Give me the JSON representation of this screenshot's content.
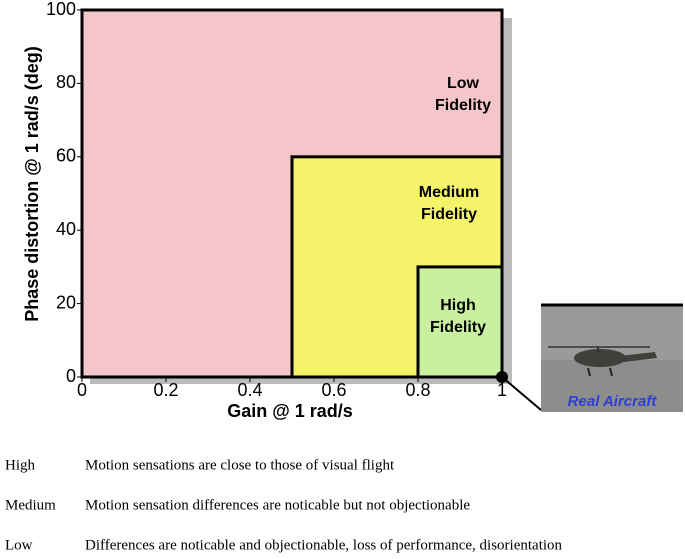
{
  "chart_data": {
    "type": "region",
    "xlabel": "Gain @ 1 rad/s",
    "ylabel": "Phase distortion @ 1 rad/s (deg)",
    "xlim": [
      0,
      1
    ],
    "ylim": [
      0,
      100
    ],
    "xticks": [
      0,
      0.2,
      0.4,
      0.6,
      0.8,
      1
    ],
    "yticks": [
      0,
      20,
      40,
      60,
      80,
      100
    ],
    "regions": [
      {
        "label": [
          "Low",
          "Fidelity"
        ],
        "x": [
          0,
          1
        ],
        "y": [
          0,
          100
        ],
        "color": "#f5c6c9"
      },
      {
        "label": [
          "Medium",
          "Fidelity"
        ],
        "x": [
          0.5,
          1
        ],
        "y": [
          0,
          60
        ],
        "color": "#f4f36a"
      },
      {
        "label": [
          "High",
          "Fidelity"
        ],
        "x": [
          0.8,
          1
        ],
        "y": [
          0,
          30
        ],
        "color": "#c8f0a0"
      }
    ],
    "point": {
      "x": 1,
      "y": 0,
      "label": "Real Aircraft"
    }
  },
  "table": {
    "rows": [
      [
        "High",
        "Motion sensations are close to those of visual flight"
      ],
      [
        "Medium",
        "Motion sensation differences are noticable but not objectionable"
      ],
      [
        "Low",
        "Differences are noticable and objectionable, loss of performance, disorientation"
      ]
    ]
  }
}
